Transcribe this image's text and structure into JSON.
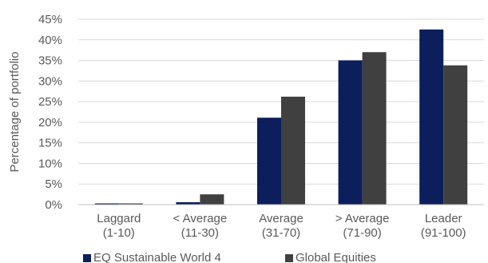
{
  "chart_data": {
    "type": "bar",
    "ylabel": "Percentage of portfolio",
    "ylim": [
      0,
      45
    ],
    "yticks": [
      "0%",
      "5%",
      "10%",
      "15%",
      "20%",
      "25%",
      "30%",
      "35%",
      "40%",
      "45%"
    ],
    "grid": true,
    "legend_position": "bottom",
    "categories": [
      [
        "Laggard",
        "(1-10)"
      ],
      [
        "< Average",
        "(11-30)"
      ],
      [
        "Average",
        "(31-70)"
      ],
      [
        "> Average",
        "(71-90)"
      ],
      [
        "Leader",
        "(91-100)"
      ]
    ],
    "series": [
      {
        "name": "EQ Sustainable World 4",
        "color": "#0c1f5c",
        "values": [
          0.3,
          0.6,
          21.1,
          35.0,
          42.5
        ]
      },
      {
        "name": "Global Equities",
        "color": "#404040",
        "values": [
          0.3,
          2.5,
          26.2,
          37.0,
          33.8
        ]
      }
    ]
  }
}
